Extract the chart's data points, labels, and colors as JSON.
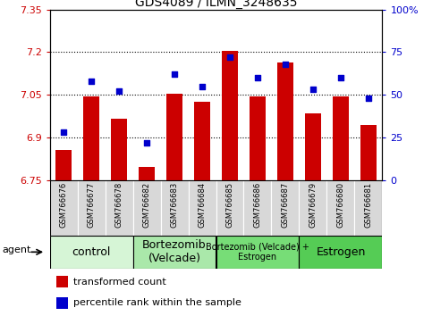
{
  "title": "GDS4089 / ILMN_3248635",
  "samples": [
    "GSM766676",
    "GSM766677",
    "GSM766678",
    "GSM766682",
    "GSM766683",
    "GSM766684",
    "GSM766685",
    "GSM766686",
    "GSM766687",
    "GSM766679",
    "GSM766680",
    "GSM766681"
  ],
  "bar_values": [
    6.855,
    7.045,
    6.965,
    6.795,
    7.055,
    7.025,
    7.205,
    7.045,
    7.165,
    6.985,
    7.045,
    6.945
  ],
  "scatter_values": [
    28,
    58,
    52,
    22,
    62,
    55,
    72,
    60,
    68,
    53,
    60,
    48
  ],
  "bar_color": "#cc0000",
  "scatter_color": "#0000cc",
  "ylim_left": [
    6.75,
    7.35
  ],
  "ylim_right": [
    0,
    100
  ],
  "yticks_left": [
    6.75,
    6.9,
    7.05,
    7.2,
    7.35
  ],
  "yticks_right": [
    0,
    25,
    50,
    75,
    100
  ],
  "ytick_labels_left": [
    "6.75",
    "6.9",
    "7.05",
    "7.2",
    "7.35"
  ],
  "ytick_labels_right": [
    "0",
    "25",
    "50",
    "75",
    "100%"
  ],
  "hlines": [
    6.9,
    7.05,
    7.2
  ],
  "groups": [
    {
      "label": "control",
      "start": 0,
      "end": 3,
      "color": "#d6f5d6",
      "fontsize": 9
    },
    {
      "label": "Bortezomib\n(Velcade)",
      "start": 3,
      "end": 6,
      "color": "#aae8aa",
      "fontsize": 9
    },
    {
      "label": "Bortezomib (Velcade) +\nEstrogen",
      "start": 6,
      "end": 9,
      "color": "#77dd77",
      "fontsize": 7
    },
    {
      "label": "Estrogen",
      "start": 9,
      "end": 12,
      "color": "#55cc55",
      "fontsize": 9
    }
  ],
  "agent_label": "agent",
  "legend_bar_label": "transformed count",
  "legend_scatter_label": "percentile rank within the sample",
  "bar_width": 0.6,
  "base_value": 6.75
}
